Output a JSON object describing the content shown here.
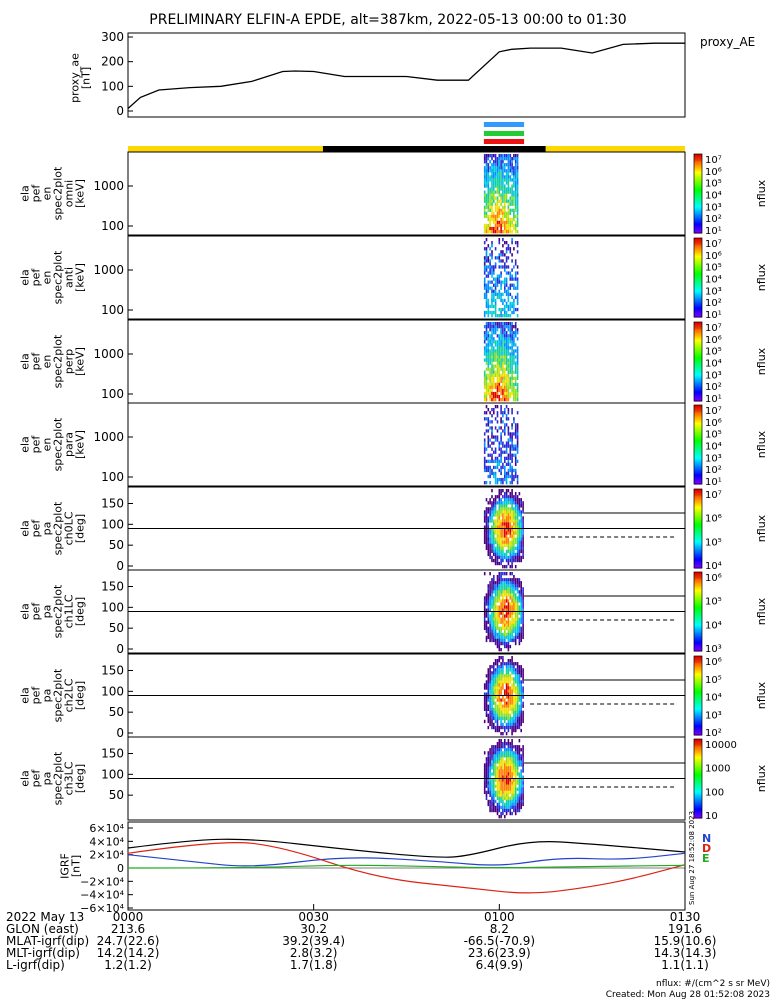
{
  "title": "PRELIMINARY ELFIN-A EPDE, alt=387km, 2022-05-13 00:00 to 01:30",
  "colors": {
    "yellow": "#FFD700",
    "black": "#000000",
    "bar_blue": "#3399FF",
    "bar_green": "#22CC33",
    "bar_red": "#EE1111",
    "N": "#2244CC",
    "D": "#DD2211",
    "E": "#22AA22",
    "H": "#000000"
  },
  "ae_panel": {
    "legend": "proxy_AE",
    "ylabel_lines": [
      "proxy_ae",
      "[nT]"
    ],
    "y_ticks": [
      "300",
      "200",
      "100",
      "0"
    ],
    "y_range": [
      0,
      300
    ]
  },
  "spec_panels": [
    {
      "ylabel_lines": [
        "ela",
        "pef",
        "en",
        "spec2plot",
        "omni",
        "[keV]"
      ],
      "y_ticks": [
        "1000",
        "100"
      ],
      "cbar_ticks": [
        "10⁷",
        "10⁶",
        "10⁵",
        "10⁴",
        "10³",
        "10²",
        "10¹"
      ],
      "cbar_label": "nflux"
    },
    {
      "ylabel_lines": [
        "ela",
        "pef",
        "en",
        "spec2plot",
        "anti",
        "[keV]"
      ],
      "y_ticks": [
        "1000",
        "100"
      ],
      "cbar_ticks": [
        "10⁷",
        "10⁶",
        "10⁵",
        "10⁴",
        "10³",
        "10²",
        "10¹"
      ],
      "cbar_label": "nflux"
    },
    {
      "ylabel_lines": [
        "ela",
        "pef",
        "en",
        "spec2plot",
        "perp",
        "[keV]"
      ],
      "y_ticks": [
        "1000",
        "100"
      ],
      "cbar_ticks": [
        "10⁷",
        "10⁶",
        "10⁵",
        "10⁴",
        "10³",
        "10²",
        "10¹"
      ],
      "cbar_label": "nflux"
    },
    {
      "ylabel_lines": [
        "ela",
        "pef",
        "en",
        "spec2plot",
        "para",
        "[keV]"
      ],
      "y_ticks": [
        "1000",
        "100"
      ],
      "cbar_ticks": [
        "10⁷",
        "10⁶",
        "10⁵",
        "10⁴",
        "10³",
        "10²",
        "10¹"
      ],
      "cbar_label": "nflux"
    },
    {
      "ylabel_lines": [
        "ela",
        "pef",
        "pa",
        "spec2plot",
        "ch0LC",
        "[deg]"
      ],
      "y_ticks": [
        "150",
        "100",
        "50",
        "0"
      ],
      "cbar_ticks": [
        "10⁷",
        "10⁶",
        "10⁵",
        "10⁴"
      ],
      "cbar_label": "nflux"
    },
    {
      "ylabel_lines": [
        "ela",
        "pef",
        "pa",
        "spec2plot",
        "ch1LC",
        "[deg]"
      ],
      "y_ticks": [
        "150",
        "100",
        "50",
        "0"
      ],
      "cbar_ticks": [
        "10⁶",
        "10⁵",
        "10⁴",
        "10³"
      ],
      "cbar_label": "nflux"
    },
    {
      "ylabel_lines": [
        "ela",
        "pef",
        "pa",
        "spec2plot",
        "ch2LC",
        "[deg]"
      ],
      "y_ticks": [
        "150",
        "100",
        "50",
        "0"
      ],
      "cbar_ticks": [
        "10⁶",
        "10⁵",
        "10⁴",
        "10³",
        "10²"
      ],
      "cbar_label": "nflux"
    },
    {
      "ylabel_lines": [
        "ela",
        "pef",
        "pa",
        "spec2plot",
        "ch3LC",
        "[deg]"
      ],
      "y_ticks": [
        "150",
        "100",
        "50"
      ],
      "cbar_ticks": [
        "10000",
        "1000",
        "100",
        "10"
      ],
      "cbar_label": "nflux"
    }
  ],
  "igrf_panel": {
    "ylabel_lines": [
      "IGRF",
      "[nT]"
    ],
    "y_ticks": [
      "6×10⁴",
      "4×10⁴",
      "2×10⁴",
      "0",
      "−2×10⁴",
      "−4×10⁴",
      "−6×10⁴"
    ],
    "legend": [
      "N",
      "D",
      "E"
    ],
    "side_text": "Sun Aug 27 18:52:08 2023"
  },
  "xaxis": {
    "row_labels": [
      "2022 May 13",
      "GLON (east)",
      "MLAT-igrf(dip)",
      "MLT-igrf(dip)",
      "L-igrf(dip)"
    ],
    "columns": [
      [
        "0000",
        "213.6",
        "24.7(22.6)",
        "14.2(14.2)",
        "1.2(1.2)"
      ],
      [
        "0030",
        "30.2",
        "39.2(39.4)",
        "2.8(3.2)",
        "1.7(1.8)"
      ],
      [
        "0100",
        "8.2",
        "-66.5(-70.9)",
        "23.6(23.9)",
        "6.4(9.9)"
      ],
      [
        "0130",
        "191.6",
        "15.9(10.6)",
        "14.3(14.3)",
        "1.1(1.1)"
      ]
    ]
  },
  "footer": {
    "units": "nflux: #/(cm^2 s sr MeV)",
    "created": "Created: Mon Aug 28 01:52:08 2023"
  },
  "chart_data": {
    "type": "line",
    "title": "PRELIMINARY ELFIN-A EPDE, alt=387km, 2022-05-13 00:00 to 01:30",
    "x_range_minutes": [
      0,
      90
    ],
    "proxy_ae": {
      "t_min": [
        0,
        2,
        5,
        10,
        15,
        20,
        25,
        27,
        30,
        35,
        40,
        45,
        50,
        55,
        60,
        62,
        65,
        70,
        75,
        80,
        85,
        90
      ],
      "values": [
        10,
        55,
        85,
        95,
        100,
        120,
        160,
        162,
        160,
        140,
        140,
        140,
        125,
        125,
        240,
        250,
        255,
        255,
        235,
        270,
        275,
        275
      ],
      "ylim": [
        0,
        300
      ]
    },
    "orbit_segments": [
      {
        "color": "yellow",
        "t_start": 0,
        "t_end": 31.5
      },
      {
        "color": "black",
        "t_start": 31.5,
        "t_end": 67.5
      },
      {
        "color": "yellow",
        "t_start": 67.5,
        "t_end": 90
      }
    ],
    "science_zone_min": [
      57.5,
      64
    ],
    "igrf": {
      "series": [
        {
          "name": "H",
          "color": "#000000",
          "t_min": [
            0,
            10,
            20,
            35,
            50,
            55,
            65,
            75,
            90
          ],
          "values": [
            30000,
            42000,
            44000,
            28000,
            15000,
            18000,
            42000,
            36000,
            24000
          ]
        },
        {
          "name": "N",
          "color": "#2244CC",
          "t_min": [
            0,
            10,
            20,
            35,
            50,
            60,
            70,
            80,
            90
          ],
          "values": [
            20000,
            10000,
            0,
            18000,
            10000,
            2000,
            16000,
            12000,
            22000
          ]
        },
        {
          "name": "D",
          "color": "#DD2211",
          "t_min": [
            0,
            15,
            25,
            40,
            55,
            65,
            75,
            82,
            90
          ],
          "values": [
            22000,
            42000,
            32000,
            -15000,
            -30000,
            -40000,
            -28000,
            -15000,
            5000
          ]
        },
        {
          "name": "E",
          "color": "#22AA22",
          "t_min": [
            0,
            20,
            35,
            50,
            60,
            72,
            90
          ],
          "values": [
            0,
            0,
            5000,
            2000,
            0,
            2000,
            4000
          ]
        }
      ],
      "ylim": [
        -60000,
        60000
      ]
    }
  }
}
